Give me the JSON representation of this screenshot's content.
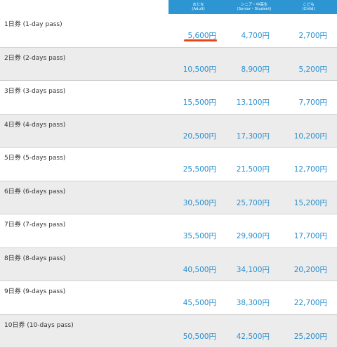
{
  "header": {
    "adult": {
      "line1": "おとな",
      "line2": "(Adult)"
    },
    "senior": {
      "line1": "シニア・中高生",
      "line2": "(Senior・Student)"
    },
    "child": {
      "line1": "こども",
      "line2": "(Child)"
    }
  },
  "rows": [
    {
      "label": "1日券 (1-day pass)",
      "adult": "5,600円",
      "senior": "4,700円",
      "child": "2,700円"
    },
    {
      "label": "2日券 (2-days pass)",
      "adult": "10,500円",
      "senior": "8,900円",
      "child": "5,200円"
    },
    {
      "label": "3日券 (3-days pass)",
      "adult": "15,500円",
      "senior": "13,100円",
      "child": "7,700円"
    },
    {
      "label": "4日券 (4-days pass)",
      "adult": "20,500円",
      "senior": "17,300円",
      "child": "10,200円"
    },
    {
      "label": "5日券 (5-days pass)",
      "adult": "25,500円",
      "senior": "21,500円",
      "child": "12,700円"
    },
    {
      "label": "6日券 (6-days pass)",
      "adult": "30,500円",
      "senior": "25,700円",
      "child": "15,200円"
    },
    {
      "label": "7日券 (7-days pass)",
      "adult": "35,500円",
      "senior": "29,900円",
      "child": "17,700円"
    },
    {
      "label": "8日券 (8-days pass)",
      "adult": "40,500円",
      "senior": "34,100円",
      "child": "20,200円"
    },
    {
      "label": "9日券 (9-days pass)",
      "adult": "45,500円",
      "senior": "38,300円",
      "child": "22,700円"
    },
    {
      "label": "10日券 (10-days pass)",
      "adult": "50,500円",
      "senior": "42,500円",
      "child": "25,200円"
    }
  ],
  "colors": {
    "header_bg": "#2d96d2",
    "price": "#2a8fcf",
    "highlight": "#e8451f",
    "alt_row": "#ececec"
  }
}
